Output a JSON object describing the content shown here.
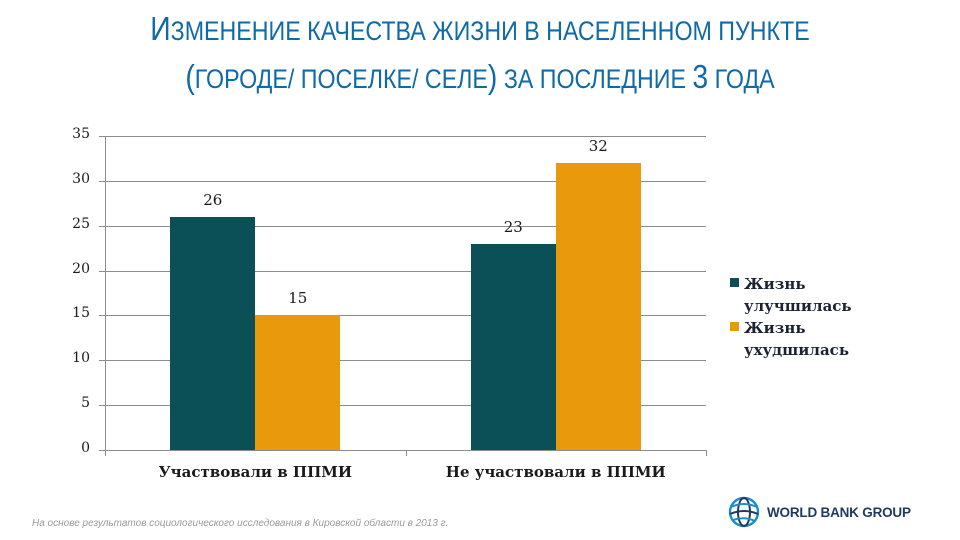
{
  "title": {
    "line1_first": "И",
    "line1_rest": "ЗМЕНЕНИЕ КАЧЕСТВА ЖИЗНИ В НАСЕЛЕННОМ ПУНКТЕ",
    "line2_open": "(",
    "line2_mid": "ГОРОДЕ/ ПОСЕЛКЕ/ СЕЛЕ",
    "line2_close": ")",
    "line2_rest": " ЗА ПОСЛЕДНИЕ ",
    "line2_num": "3",
    "line2_end": " ГОДА",
    "color": "#0e6aa8"
  },
  "chart_data": {
    "type": "bar",
    "title": "Изменение качества жизни в населенном пункте (городе/ поселке/ селе) за последние 3 года",
    "categories": [
      "Участвовали в ППМИ",
      "Не участвовали в ППМИ"
    ],
    "series": [
      {
        "name": "Жизнь улучшилась",
        "color": "#0b4f57",
        "values": [
          26,
          23
        ]
      },
      {
        "name": "Жизнь ухудшилась",
        "color": "#e89a0c",
        "values": [
          15,
          32
        ]
      }
    ],
    "data_labels": [
      [
        "26",
        "23"
      ],
      [
        "15",
        "32"
      ]
    ],
    "xlabel": "",
    "ylabel": "",
    "ylim": [
      0,
      35
    ],
    "yticks": [
      "0",
      "5",
      "10",
      "15",
      "20",
      "25",
      "30",
      "35"
    ],
    "grid": true,
    "legend_position": "right"
  },
  "legend": {
    "items": [
      {
        "label": "Жизнь улучшилась",
        "line1": "Жизнь",
        "line2": "улучшилась",
        "color": "#0b4f57"
      },
      {
        "label": "Жизнь ухудшилась",
        "line1": "Жизнь",
        "line2": "ухудшилась",
        "color": "#e89a0c"
      }
    ]
  },
  "footnote": "На основе результатов социологического исследования в Кировской области в 2013 г.",
  "logo": {
    "text": "WORLD BANK GROUP",
    "icon": "globe-icon"
  }
}
